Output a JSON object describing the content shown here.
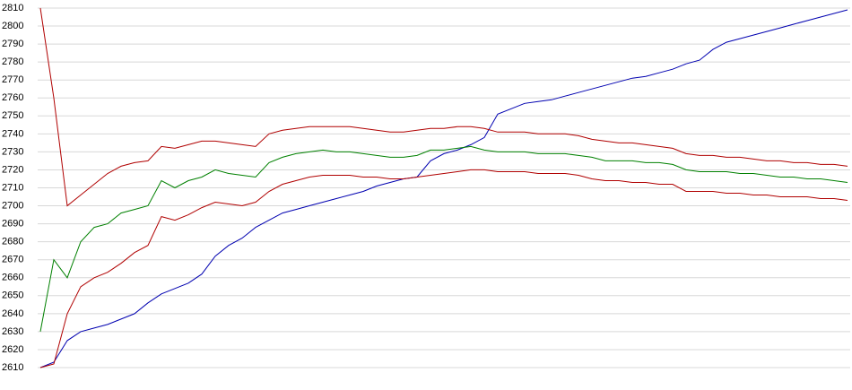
{
  "chart_data": {
    "type": "line",
    "categories": [
      null,
      null,
      null,
      null,
      null,
      null,
      null,
      null,
      null,
      null,
      null,
      null,
      null,
      null,
      null,
      null,
      null,
      null,
      null,
      null,
      null,
      null,
      null,
      null,
      null,
      null,
      null,
      null,
      null,
      null,
      null,
      null,
      null,
      null,
      null,
      null,
      null,
      null,
      null,
      null,
      null,
      null,
      null,
      null,
      null,
      null,
      null,
      null,
      null,
      null,
      null,
      null,
      null,
      null,
      null,
      null,
      null,
      null,
      null,
      null,
      null
    ],
    "series": [
      {
        "color": "#0000b0",
        "values": [
          2610,
          2613,
          2625,
          2630,
          2632,
          2634,
          2637,
          2640,
          2646,
          2651,
          2654,
          2657,
          2662,
          2672,
          2678,
          2682,
          2688,
          2692,
          2696,
          2698,
          2700,
          2702,
          2704,
          2706,
          2708,
          2711,
          2713,
          2715,
          2716,
          2725,
          2729,
          2731,
          2734,
          2738,
          2751,
          2754,
          2757,
          2758,
          2759,
          2761,
          2763,
          2765,
          2767,
          2769,
          2771,
          2772,
          2774,
          2776,
          2779,
          2781,
          2787,
          2791,
          2793,
          2795,
          2797,
          2799,
          2801,
          2803,
          2805,
          2807,
          2809
        ]
      },
      {
        "color": "#008000",
        "values": [
          2630,
          2670,
          2660,
          2680,
          2688,
          2690,
          2696,
          2698,
          2700,
          2714,
          2710,
          2714,
          2716,
          2720,
          2718,
          2717,
          2716,
          2724,
          2727,
          2729,
          2730,
          2731,
          2730,
          2730,
          2729,
          2728,
          2727,
          2727,
          2728,
          2731,
          2731,
          2732,
          2733,
          2731,
          2730,
          2730,
          2730,
          2729,
          2729,
          2729,
          2728,
          2727,
          2725,
          2725,
          2725,
          2724,
          2724,
          2723,
          2720,
          2719,
          2719,
          2719,
          2718,
          2718,
          2717,
          2716,
          2716,
          2715,
          2715,
          2714,
          2713
        ]
      },
      {
        "color": "#b00000",
        "values": [
          2810,
          2760,
          2700,
          2706,
          2712,
          2718,
          2722,
          2724,
          2725,
          2733,
          2732,
          2734,
          2736,
          2736,
          2735,
          2734,
          2733,
          2740,
          2742,
          2743,
          2744,
          2744,
          2744,
          2744,
          2743,
          2742,
          2741,
          2741,
          2742,
          2743,
          2743,
          2744,
          2744,
          2743,
          2741,
          2741,
          2741,
          2740,
          2740,
          2740,
          2739,
          2737,
          2736,
          2735,
          2735,
          2734,
          2733,
          2732,
          2729,
          2728,
          2728,
          2727,
          2727,
          2726,
          2725,
          2725,
          2724,
          2724,
          2723,
          2723,
          2722
        ]
      },
      {
        "color": "#b00000",
        "values": [
          2610,
          2612,
          2640,
          2655,
          2660,
          2663,
          2668,
          2674,
          2678,
          2694,
          2692,
          2695,
          2699,
          2702,
          2701,
          2700,
          2702,
          2708,
          2712,
          2714,
          2716,
          2717,
          2717,
          2717,
          2716,
          2716,
          2715,
          2715,
          2716,
          2717,
          2718,
          2719,
          2720,
          2720,
          2719,
          2719,
          2719,
          2718,
          2718,
          2718,
          2717,
          2715,
          2714,
          2714,
          2713,
          2713,
          2712,
          2712,
          2708,
          2708,
          2708,
          2707,
          2707,
          2706,
          2706,
          2705,
          2705,
          2705,
          2704,
          2704,
          2703
        ]
      }
    ],
    "ylim": [
      2610,
      2810
    ],
    "yticks": [
      2610,
      2620,
      2630,
      2640,
      2650,
      2660,
      2670,
      2680,
      2690,
      2700,
      2710,
      2720,
      2730,
      2740,
      2750,
      2760,
      2770,
      2780,
      2790,
      2800,
      2810
    ],
    "grid": true
  }
}
